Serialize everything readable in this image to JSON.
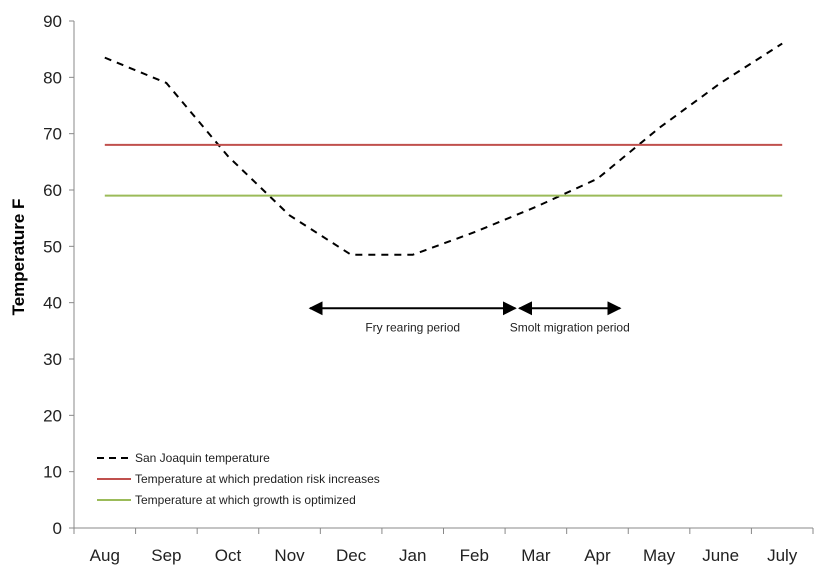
{
  "chart_data": {
    "type": "line",
    "title": "",
    "xlabel": "",
    "ylabel": "Temperature F",
    "ylim": [
      0,
      90
    ],
    "yticks": [
      0,
      10,
      20,
      30,
      40,
      50,
      60,
      70,
      80,
      90
    ],
    "categories": [
      "Aug",
      "Sep",
      "Oct",
      "Nov",
      "Dec",
      "Jan",
      "Feb",
      "Mar",
      "Apr",
      "May",
      "June",
      "July"
    ],
    "grid": false,
    "legend_position": "bottom-left",
    "series": [
      {
        "name": "San Joaquin temperature",
        "style": "dashed",
        "color": "#000000",
        "values": [
          83.5,
          79,
          66,
          55.5,
          48.5,
          48.5,
          52.5,
          57,
          62,
          71,
          79,
          86
        ]
      },
      {
        "name": "Temperature at which predation risk increases",
        "style": "solid",
        "color": "#c0504d",
        "values": [
          68,
          68,
          68,
          68,
          68,
          68,
          68,
          68,
          68,
          68,
          68,
          68
        ]
      },
      {
        "name": "Temperature at which growth is optimized",
        "style": "solid",
        "color": "#9bbb59",
        "values": [
          59,
          59,
          59,
          59,
          59,
          59,
          59,
          59,
          59,
          59,
          59,
          59
        ]
      }
    ],
    "annotations": [
      {
        "label": "Fry rearing period",
        "x_start": 3.8,
        "x_end": 7.2,
        "y": 39
      },
      {
        "label": "Smolt migration period",
        "x_start": 7.2,
        "x_end": 8.9,
        "y": 39
      }
    ]
  }
}
